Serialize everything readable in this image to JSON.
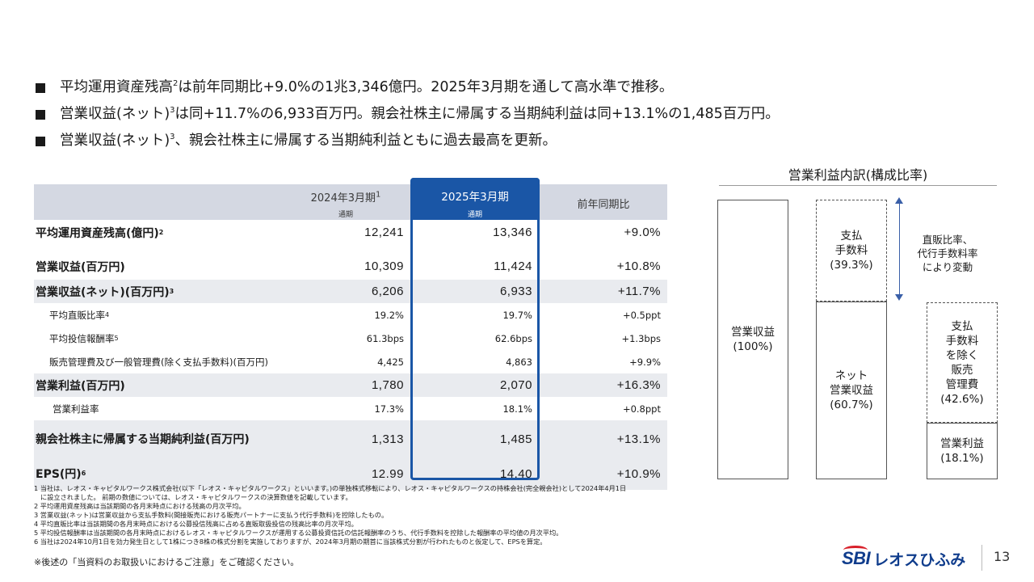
{
  "bullets": [
    {
      "pre": "平均運用資産残高",
      "sup": "2",
      "post": "は前年同期比+9.0%の1兆3,346億円。2025年3月期を通して高水準で推移。"
    },
    {
      "pre": "営業収益(ネット)",
      "sup": "3",
      "post": "は同+11.7%の6,933百万円。親会社株主に帰属する当期純利益は同+13.1%の1,485百万円。"
    },
    {
      "pre": "営業収益(ネット)",
      "sup": "3",
      "post": "、親会社株主に帰属する当期純利益ともに過去最高を更新。"
    }
  ],
  "table": {
    "col1": {
      "title": "2024年3月期",
      "sup": "1",
      "sub": "通期"
    },
    "col2": {
      "title": "2025年3月期",
      "sub": "通期"
    },
    "col3": {
      "title": "前年同期比"
    },
    "rows": [
      {
        "label": "平均運用資産残高(億円)",
        "sup": "2",
        "v1": "12,241",
        "v2": "13,346",
        "v3": "+9.0%"
      },
      {
        "label": "営業収益(百万円)",
        "sup": "",
        "v1": "10,309",
        "v2": "11,424",
        "v3": "+10.8%"
      },
      {
        "label": "営業収益(ネット)(百万円)",
        "sup": "3",
        "v1": "6,206",
        "v2": "6,933",
        "v3": "+11.7%"
      },
      {
        "label": "平均直販比率",
        "sup": "4",
        "v1": "19.2%",
        "v2": "19.7%",
        "v3": "+0.5ppt"
      },
      {
        "label": "平均投信報酬率",
        "sup": "5",
        "v1": "61.3bps",
        "v2": "62.6bps",
        "v3": "+1.3bps"
      },
      {
        "label": "販売管理費及び一般管理費(除く支払手数料)(百万円)",
        "sup": "",
        "v1": "4,425",
        "v2": "4,863",
        "v3": "+9.9%"
      },
      {
        "label": "営業利益(百万円)",
        "sup": "",
        "v1": "1,780",
        "v2": "2,070",
        "v3": "+16.3%"
      },
      {
        "label": "営業利益率",
        "sup": "",
        "v1": "17.3%",
        "v2": "18.1%",
        "v3": "+0.8ppt"
      },
      {
        "label": "親会社株主に帰属する当期純利益(百万円)",
        "sup": "",
        "v1": "1,313",
        "v2": "1,485",
        "v3": "+13.1%"
      },
      {
        "label": "EPS(円)",
        "sup": "6",
        "v1": "12.99",
        "v2": "14.40",
        "v3": "+10.9%"
      }
    ]
  },
  "footnotes": [
    "1 当社は、レオス・キャピタルワークス株式会社(以下「レオス・キャピタルワークス」といいます。)の単独株式移転により、レオス・キャピタルワークスの持株会社(完全親会社)として2024年4月1日",
    "に設立されました。 前期の数値については、レオス・キャピタルワークスの決算数値を記載しています。",
    "2 平均運用資産残高は当該期間の各月末時点における残高の月次平均。",
    "3 営業収益(ネット)は営業収益から支払手数料(間接販売における販売パートナーに支払う代行手数料)を控除したもの。",
    "4 平均直販比率は当該期間の各月末時点における公募投信残高に占める直販取扱投信の残高比率の月次平均。",
    "5 平均投信報酬率は当該期間の各月末時点におけるレオス・キャピタルワークスが運用する公募投資信託の信託報酬率のうち、代行手数料を控除した報酬率の平均値の月次平均。",
    "6 当社は2024年10月1日を効力発生日として1株につき8株の株式分割を実施しておりますが、2024年3月期の期首に当該株式分割が行われたものと仮定して、EPSを算定。"
  ],
  "caution": "※後述の「当資料のお取扱いにおけるご注意」をご確認ください。",
  "diagram": {
    "title": "営業利益内訳(構成比率)",
    "revenue": "営業収益\n(100%)",
    "fees": "支払\n手数料\n(39.3%)",
    "net": "ネット\n営業収益\n(60.7%)",
    "sga": "支払\n手数料\nを除く\n販売\n管理費\n(42.6%)",
    "op": "営業利益\n(18.1%)",
    "note": "直販比率、\n代行手数料率\nにより変動",
    "arrow_color": "#3a5fa8"
  },
  "logo": {
    "sbi": "SBI",
    "name": "レオスひふみ"
  },
  "page_number": "13",
  "colors": {
    "highlight": "#1a56a6",
    "header_bg": "#d4d8e2",
    "row_shade": "#e9ebef",
    "brand": "#0f3c8c"
  }
}
